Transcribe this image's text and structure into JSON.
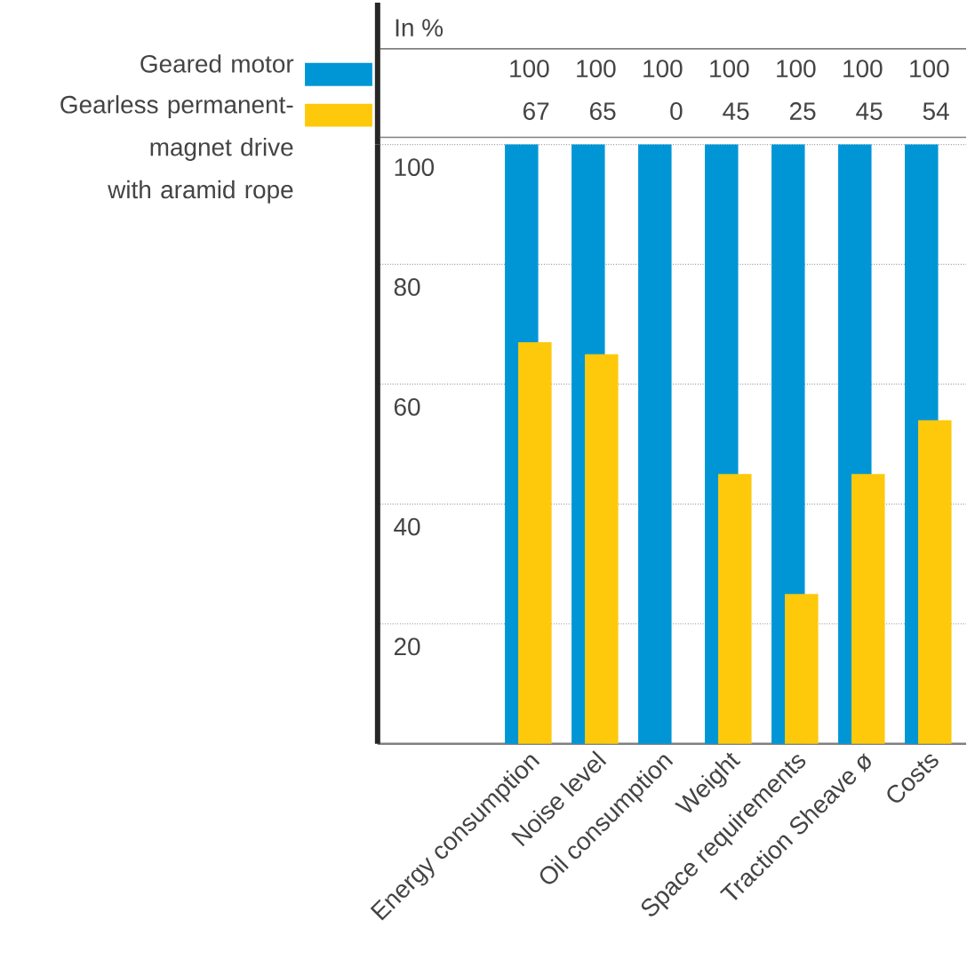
{
  "chart_data": {
    "type": "bar",
    "ylabel": "In %",
    "categories": [
      "Energy consumption",
      "Noise level",
      "Oil consumption",
      "Weight",
      "Space requirements",
      "Traction Sheave ø",
      "Costs"
    ],
    "series": [
      {
        "name": "Geared motor",
        "color": "#0096d6",
        "values": [
          100,
          100,
          100,
          100,
          100,
          100,
          100
        ]
      },
      {
        "name": "Gearless permanent-magnet drive with aramid rope",
        "color": "#fdc90a",
        "values": [
          67,
          65,
          0,
          45,
          25,
          45,
          54
        ]
      }
    ],
    "annotations": [
      "100",
      "100",
      "100",
      "100",
      "100",
      "100",
      "100",
      "67",
      "65",
      "0",
      "45",
      "25",
      "45",
      "54"
    ],
    "ylim": [
      0,
      100
    ],
    "yticks": [
      20,
      40,
      60,
      80,
      100
    ],
    "grid": "y",
    "legend": "left"
  }
}
